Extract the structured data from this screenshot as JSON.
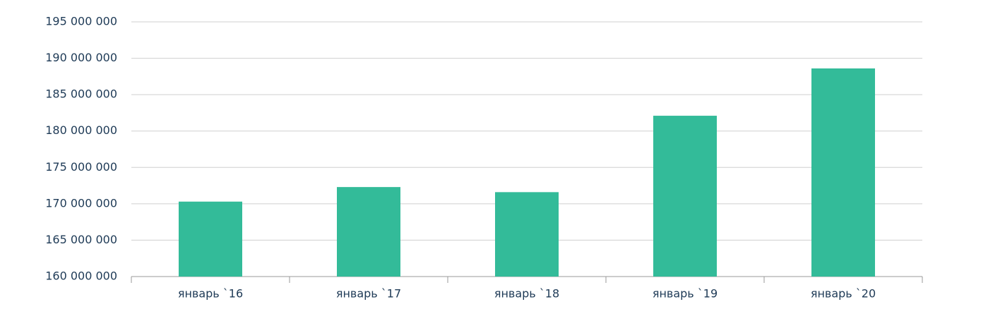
{
  "chart_data": {
    "type": "bar",
    "categories": [
      "январь `16",
      "январь `17",
      "январь `18",
      "январь `19",
      "январь `20"
    ],
    "values": [
      170300000,
      172300000,
      171600000,
      182100000,
      188600000
    ],
    "color": "#33bb99",
    "ylim": [
      160000000,
      195000000
    ],
    "yticks": [
      {
        "value": 160000000,
        "label": "160 000 000"
      },
      {
        "value": 165000000,
        "label": "165 000 000"
      },
      {
        "value": 170000000,
        "label": "170 000 000"
      },
      {
        "value": 175000000,
        "label": "175 000 000"
      },
      {
        "value": 180000000,
        "label": "180 000 000"
      },
      {
        "value": 185000000,
        "label": "185 000 000"
      },
      {
        "value": 190000000,
        "label": "190 000 000"
      },
      {
        "value": 195000000,
        "label": "195 000 000"
      }
    ],
    "grid": true
  }
}
